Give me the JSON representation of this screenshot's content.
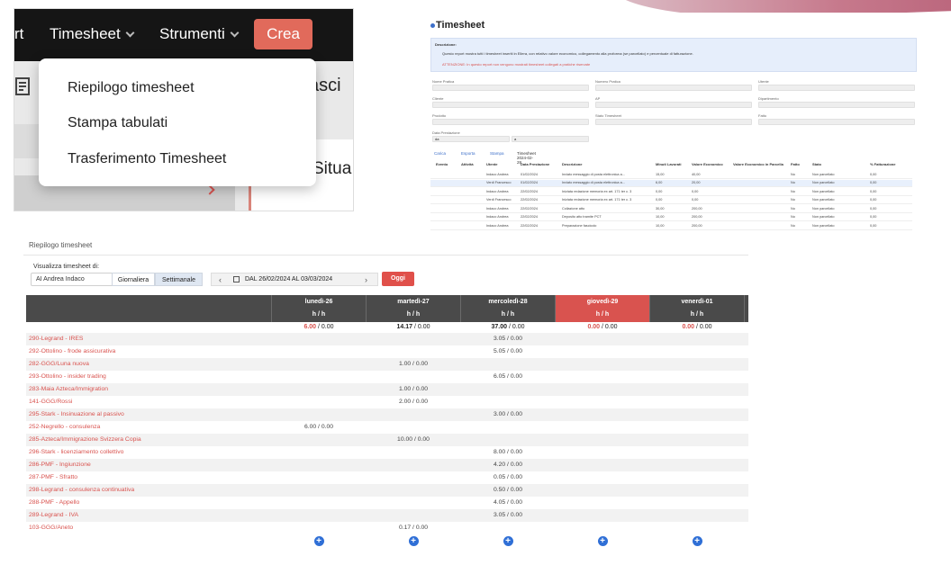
{
  "menu_panel": {
    "nav": {
      "partial": "rt",
      "timesheet": "Timesheet",
      "strumenti": "Strumenti",
      "crea": "Crea"
    },
    "bg_partial_right": "asci",
    "bg_partial_situ": "Situa",
    "dropdown": [
      "Riepilogo timesheet",
      "Stampa tabulati",
      "Trasferimento Timesheet"
    ]
  },
  "timesheet_page": {
    "title": "Timesheet",
    "description_label": "Descrizione:",
    "description_text": "Questo report mostra tutti i timesheet inseriti in Ellera, con relativo valore economico, collegamento alla proforma (se parcellato) e percentuale di fatturazione.",
    "warning_text": "ATTENZIONE: In questo report non vengono mostrati timesheet collegati a pratiche riservate",
    "filters": [
      "Nome Pratica",
      "Numero Pratica",
      "Utente",
      "Cliente",
      "AP",
      "Dipartimento",
      "Prodotto",
      "Stato Timesheet",
      "Fatto",
      "Data Prestazione"
    ],
    "date_from": "da",
    "date_to": "a",
    "tabs": [
      "Carica",
      "Esporta",
      "Stampa",
      "Timesheet 2024-02-28"
    ],
    "columns": [
      "Evento",
      "Attività",
      "Utente",
      "Data Prestazione",
      "Descrizione",
      "Minuti Lavorati",
      "Valore Economico",
      "Valore Economico in Parcella",
      "Fatto",
      "Stato",
      "% Fatturazione"
    ],
    "rows": [
      [
        "Indaco Andrea",
        "01/02/2024",
        "Inviato messaggio di posta elettronica a...",
        "15,00",
        "40,00",
        "No",
        "Non parcellato",
        "0,00"
      ],
      [
        "Verdi Francesco",
        "01/02/2024",
        "Inviato messaggio di posta elettronica a...",
        "6,00",
        "20,00",
        "No",
        "Non parcellato",
        "0,00"
      ],
      [
        "Indaco Andrea",
        "22/02/2024",
        "Iniziata redazione memoria ex art. 171 ter c. 3",
        "0,00",
        "0,00",
        "No",
        "Non parcellato",
        "0,00"
      ],
      [
        "Verdi Francesco",
        "22/02/2024",
        "Iniziata redazione memoria ex art. 171 ter c. 3",
        "0,00",
        "0,00",
        "No",
        "Non parcellato",
        "0,00"
      ],
      [
        "Indaco Andrea",
        "22/02/2024",
        "Collazione atto",
        "30,00",
        "200,00",
        "No",
        "Non parcellato",
        "0,00"
      ],
      [
        "Indaco Andrea",
        "22/02/2024",
        "Deposito atto tramite PCT",
        "10,00",
        "200,00",
        "No",
        "Non parcellato",
        "0,00"
      ],
      [
        "Indaco Andrea",
        "22/02/2024",
        "Preparazione fascicolo",
        "10,00",
        "200,00",
        "No",
        "Non parcellato",
        "0,00"
      ]
    ]
  },
  "riepilogo": {
    "header": "Riepilogo timesheet",
    "view_label": "Visualizza timesheet di:",
    "user_select": "AI Andrea Indaco",
    "mode_daily": "Giornaliera",
    "mode_weekly": "Settimanale",
    "date_range": "DAL 26/02/2024 AL 03/03/2024",
    "today_btn": "Oggi",
    "days": [
      {
        "label": "lunedì-26",
        "unit": "h / h",
        "total_hi": "6.00",
        "total_rest": " / 0.00",
        "total_color": "red"
      },
      {
        "label": "martedì-27",
        "unit": "h / h",
        "total_hi": "14.17",
        "total_rest": " / 0.00",
        "total_color": "black"
      },
      {
        "label": "mercoledì-28",
        "unit": "h / h",
        "total_hi": "37.00",
        "total_rest": " / 0.00",
        "total_color": "black"
      },
      {
        "label": "giovedì-29",
        "unit": "h / h",
        "total_hi": "0.00",
        "total_rest": " / 0.00",
        "total_color": "red"
      },
      {
        "label": "venerdì-01",
        "unit": "h / h",
        "total_hi": "0.00",
        "total_rest": " / 0.00",
        "total_color": "red"
      }
    ],
    "rows": [
      {
        "name": "290-Legrand - IRES",
        "vals": [
          "",
          "",
          "3.05 / 0.00",
          "",
          ""
        ]
      },
      {
        "name": "292-Ottolino - frode assicurativa",
        "vals": [
          "",
          "",
          "5.05 / 0.00",
          "",
          ""
        ]
      },
      {
        "name": "282-GGG/Luna nuova",
        "vals": [
          "",
          "1.00 / 0.00",
          "",
          "",
          ""
        ]
      },
      {
        "name": "293-Ottolino - insider trading",
        "vals": [
          "",
          "",
          "6.05 / 0.00",
          "",
          ""
        ]
      },
      {
        "name": "283-Maia Azteca/Immigration",
        "vals": [
          "",
          "1.00 / 0.00",
          "",
          "",
          ""
        ]
      },
      {
        "name": "141-GGG/Rossi",
        "vals": [
          "",
          "2.00 / 0.00",
          "",
          "",
          ""
        ]
      },
      {
        "name": "295-Stark - Insinuazione al passivo",
        "vals": [
          "",
          "",
          "3.00 / 0.00",
          "",
          ""
        ]
      },
      {
        "name": "252-Negrello - consulenza",
        "vals": [
          "6.00 / 0.00",
          "",
          "",
          "",
          ""
        ]
      },
      {
        "name": "285-Azteca/Immigrazione Svizzera Copia",
        "vals": [
          "",
          "10.00 / 0.00",
          "",
          "",
          ""
        ]
      },
      {
        "name": "296-Stark - licenziamento collettivo",
        "vals": [
          "",
          "",
          "8.00 / 0.00",
          "",
          ""
        ]
      },
      {
        "name": "286-PMF - Ingiunzione",
        "vals": [
          "",
          "",
          "4.20 / 0.00",
          "",
          ""
        ]
      },
      {
        "name": "287-PMF - Sfratto",
        "vals": [
          "",
          "",
          "0.05 / 0.00",
          "",
          ""
        ]
      },
      {
        "name": "298-Legrand - consulenza continuativa",
        "vals": [
          "",
          "",
          "0.50 / 0.00",
          "",
          ""
        ]
      },
      {
        "name": "288-PMF - Appello",
        "vals": [
          "",
          "",
          "4.05 / 0.00",
          "",
          ""
        ]
      },
      {
        "name": "289-Legrand - IVA",
        "vals": [
          "",
          "",
          "3.05 / 0.00",
          "",
          ""
        ]
      },
      {
        "name": "103-GGG/Aneto",
        "vals": [
          "",
          "0.17 / 0.00",
          "",
          "",
          ""
        ]
      }
    ],
    "add_icon": "plus-circle-icon"
  }
}
